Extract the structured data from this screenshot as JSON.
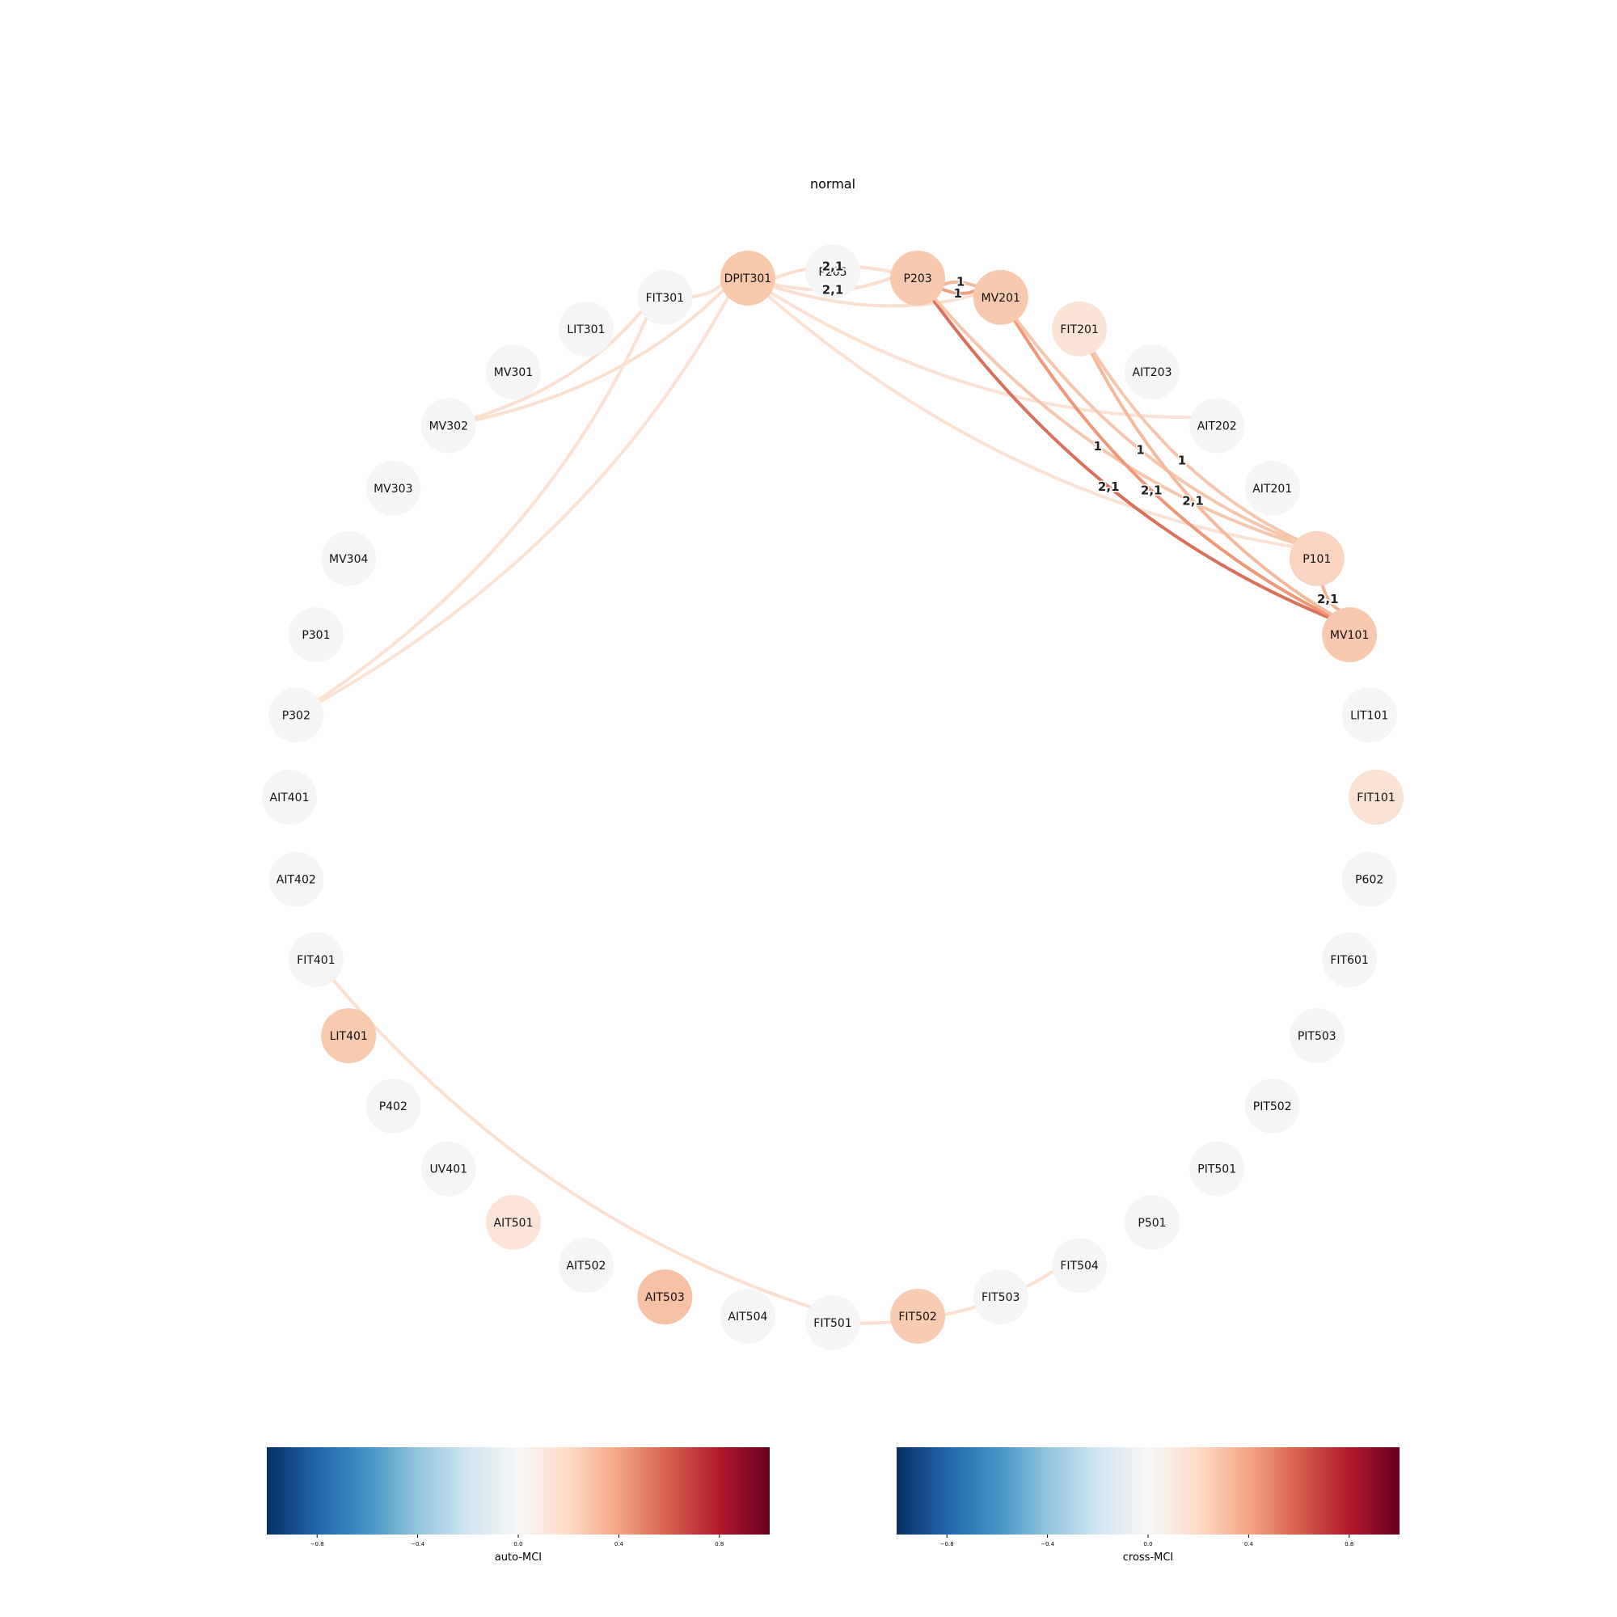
{
  "title": "normal",
  "nodes": [
    {
      "id": "P205",
      "color": "#f5f5f5"
    },
    {
      "id": "P203",
      "color": "#f8c9ae"
    },
    {
      "id": "MV201",
      "color": "#f8c9ae"
    },
    {
      "id": "FIT201",
      "color": "#fbe4d6"
    },
    {
      "id": "AIT203",
      "color": "#f5f5f5"
    },
    {
      "id": "AIT202",
      "color": "#f5f5f5"
    },
    {
      "id": "AIT201",
      "color": "#f5f5f5"
    },
    {
      "id": "P101",
      "color": "#fad4c0"
    },
    {
      "id": "MV101",
      "color": "#f8c9ae"
    },
    {
      "id": "LIT101",
      "color": "#f5f5f5"
    },
    {
      "id": "FIT101",
      "color": "#fbe3d4"
    },
    {
      "id": "P602",
      "color": "#f5f5f5"
    },
    {
      "id": "FIT601",
      "color": "#f5f5f5"
    },
    {
      "id": "PIT503",
      "color": "#f5f5f5"
    },
    {
      "id": "PIT502",
      "color": "#f5f5f5"
    },
    {
      "id": "PIT501",
      "color": "#f5f5f5"
    },
    {
      "id": "P501",
      "color": "#f5f5f5"
    },
    {
      "id": "FIT504",
      "color": "#f5f5f5"
    },
    {
      "id": "FIT503",
      "color": "#f5f5f5"
    },
    {
      "id": "FIT502",
      "color": "#f8ccb2"
    },
    {
      "id": "FIT501",
      "color": "#f5f5f5"
    },
    {
      "id": "AIT504",
      "color": "#f5f5f5"
    },
    {
      "id": "AIT503",
      "color": "#f6c1a4"
    },
    {
      "id": "AIT502",
      "color": "#f5f5f5"
    },
    {
      "id": "AIT501",
      "color": "#fbe5d8"
    },
    {
      "id": "UV401",
      "color": "#f5f5f5"
    },
    {
      "id": "P402",
      "color": "#f5f5f5"
    },
    {
      "id": "LIT401",
      "color": "#f8cbb1"
    },
    {
      "id": "FIT401",
      "color": "#f5f5f5"
    },
    {
      "id": "AIT402",
      "color": "#f5f5f5"
    },
    {
      "id": "AIT401",
      "color": "#f5f5f5"
    },
    {
      "id": "P302",
      "color": "#f5f5f5"
    },
    {
      "id": "P301",
      "color": "#f5f5f5"
    },
    {
      "id": "MV304",
      "color": "#f5f5f5"
    },
    {
      "id": "MV303",
      "color": "#f5f5f5"
    },
    {
      "id": "MV302",
      "color": "#f5f5f5"
    },
    {
      "id": "MV301",
      "color": "#f5f5f5"
    },
    {
      "id": "LIT301",
      "color": "#f5f5f5"
    },
    {
      "id": "FIT301",
      "color": "#f5f5f5"
    },
    {
      "id": "DPIT301",
      "color": "#f8c8ad"
    }
  ],
  "edges": [
    {
      "source": "DPIT301",
      "target": "P203",
      "color": "#fbe0d0",
      "label": "2,1"
    },
    {
      "source": "P203",
      "target": "DPIT301",
      "color": "#fbe0d0",
      "label": "2,1"
    },
    {
      "source": "DPIT301",
      "target": "MV201",
      "color": "#fbe0d0",
      "label": ""
    },
    {
      "source": "DPIT301",
      "target": "P101",
      "color": "#fbe2d3",
      "label": ""
    },
    {
      "source": "DPIT301",
      "target": "AIT202",
      "color": "#fbe2d3",
      "label": ""
    },
    {
      "source": "FIT301",
      "target": "DPIT301",
      "color": "#fbe2d3",
      "label": ""
    },
    {
      "source": "MV302",
      "target": "DPIT301",
      "color": "#fbe0d0",
      "label": ""
    },
    {
      "source": "MV302",
      "target": "FIT301",
      "color": "#fbe0d0",
      "label": ""
    },
    {
      "source": "P302",
      "target": "DPIT301",
      "color": "#fbe2d3",
      "label": ""
    },
    {
      "source": "P302",
      "target": "FIT301",
      "color": "#fbe2d3",
      "label": ""
    },
    {
      "source": "P203",
      "target": "MV201",
      "color": "#ef9f80",
      "label": "1"
    },
    {
      "source": "P203",
      "target": "MV101",
      "color": "#d9705a",
      "label": "2,1"
    },
    {
      "source": "P203",
      "target": "P101",
      "color": "#f6c7ad",
      "label": "1"
    },
    {
      "source": "MV201",
      "target": "P203",
      "color": "#f4b89a",
      "label": "1"
    },
    {
      "source": "MV201",
      "target": "MV101",
      "color": "#ee9878",
      "label": "2,1"
    },
    {
      "source": "MV201",
      "target": "P101",
      "color": "#f6c7ad",
      "label": "1"
    },
    {
      "source": "FIT201",
      "target": "MV101",
      "color": "#f4b89a",
      "label": "2,1"
    },
    {
      "source": "FIT201",
      "target": "P101",
      "color": "#f6c7ad",
      "label": "1"
    },
    {
      "source": "P101",
      "target": "MV101",
      "color": "#f3b194",
      "label": "2,1"
    },
    {
      "source": "FIT401",
      "target": "FIT501",
      "color": "#fbe0d0",
      "label": ""
    },
    {
      "source": "FIT501",
      "target": "FIT504",
      "color": "#fbe0d0",
      "label": ""
    }
  ],
  "colorbars": [
    {
      "label": "auto-MCI",
      "ticks": [
        "−0.8",
        "−0.4",
        "0.0",
        "0.4",
        "0.8"
      ],
      "range": [
        -1,
        1
      ]
    },
    {
      "label": "cross-MCI",
      "ticks": [
        "−0.8",
        "−0.4",
        "0.0",
        "0.4",
        "0.8"
      ],
      "range": [
        -1,
        1
      ]
    }
  ],
  "colormap": [
    "#053061",
    "#2166ac",
    "#4393c3",
    "#92c5de",
    "#d1e5f0",
    "#f7f7f7",
    "#fddbc7",
    "#f4a582",
    "#d6604d",
    "#b2182b",
    "#67001f"
  ]
}
